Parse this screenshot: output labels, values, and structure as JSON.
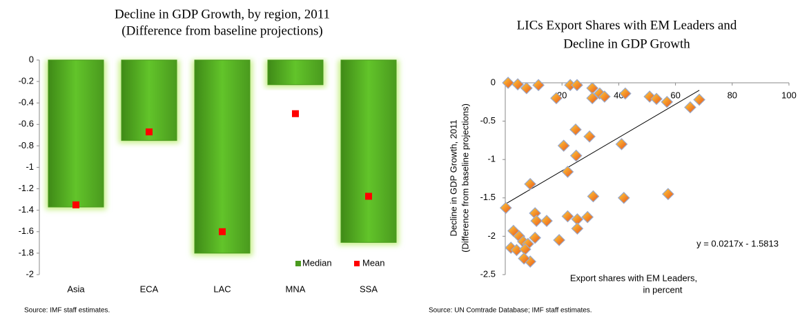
{
  "chart_data": [
    {
      "type": "bar",
      "title": "Decline in GDP Growth, by region, 2011",
      "subtitle": "(Difference from baseline projections)",
      "categories": [
        "Asia",
        "ECA",
        "LAC",
        "MNA",
        "SSA"
      ],
      "series": [
        {
          "name": "Median",
          "color": "#4a9a1e",
          "values": [
            -1.37,
            -0.75,
            -1.8,
            -0.23,
            -1.7
          ]
        },
        {
          "name": "Mean",
          "color": "#ff0000",
          "values": [
            -1.35,
            -0.67,
            -1.6,
            -0.5,
            -1.27
          ]
        }
      ],
      "ylim": [
        -2,
        0
      ],
      "yticks": [
        0,
        -0.2,
        -0.4,
        -0.6,
        -0.8,
        -1,
        -1.2,
        -1.4,
        -1.6,
        -1.8,
        -2
      ],
      "legend": "bottom-right",
      "source": "Source: IMF staff estimates."
    },
    {
      "type": "scatter",
      "title": [
        "LICs Export Shares with EM Leaders and",
        "Decline in GDP Growth"
      ],
      "xlabel": [
        "Export shares with EM Leaders,",
        "in percent"
      ],
      "ylabel": [
        "Decline in GDP Growth, 2011",
        "(Difference from baseline projections)"
      ],
      "x": [
        1,
        4.4,
        7.5,
        11.7,
        18,
        22.9,
        25.3,
        30.7,
        30.7,
        33.3,
        35,
        42.3,
        50.9,
        53.3,
        57,
        65.2,
        68.4,
        24.8,
        29.7,
        20.6,
        41,
        25,
        22,
        8.8,
        31,
        41.8,
        57.4,
        0.2,
        10.5,
        11,
        14.6,
        22,
        25.4,
        29,
        25.4,
        19,
        2.9,
        4.9,
        6.3,
        10.5,
        8,
        2,
        4,
        7,
        8.8,
        6.6
      ],
      "y": [
        0,
        -0.02,
        -0.07,
        -0.03,
        -0.2,
        -0.03,
        -0.03,
        -0.07,
        -0.2,
        -0.14,
        -0.18,
        -0.14,
        -0.18,
        -0.21,
        -0.25,
        -0.32,
        -0.22,
        -0.61,
        -0.7,
        -0.82,
        -0.8,
        -0.95,
        -1.16,
        -1.32,
        -1.48,
        -1.5,
        -1.45,
        -1.63,
        -1.7,
        -1.8,
        -1.8,
        -1.74,
        -1.78,
        -1.75,
        -1.9,
        -2.05,
        -1.93,
        -2.0,
        -2.07,
        -2.02,
        -2.1,
        -2.15,
        -2.18,
        -2.17,
        -2.33,
        -2.29
      ],
      "color": "#f59a1a",
      "xlim": [
        0,
        100
      ],
      "xticks": [
        20,
        40,
        60,
        80,
        100
      ],
      "ylim": [
        -2.5,
        0
      ],
      "yticks": [
        0,
        -0.5,
        -1,
        -1.5,
        -2,
        -2.5
      ],
      "trendline": {
        "slope": 0.0217,
        "intercept": -1.5813,
        "label": "y = 0.0217x - 1.5813"
      },
      "source": "Source: UN Comtrade Database; IMF staff estimates."
    }
  ]
}
